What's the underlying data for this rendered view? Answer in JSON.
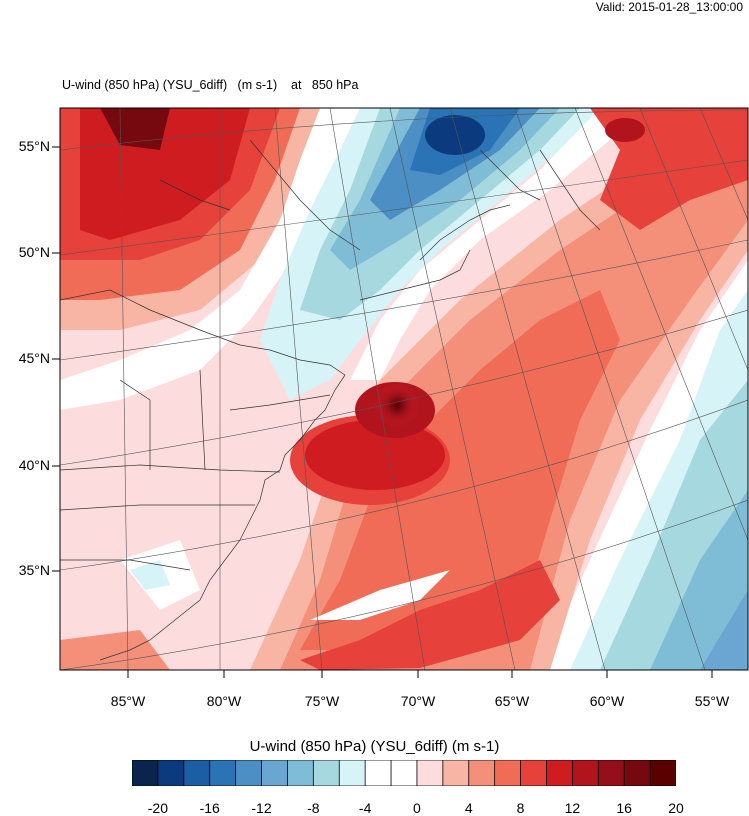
{
  "header": {
    "valid_text": "Valid: 2015-01-28_13:00:00",
    "title_field": "U-wind (850 hPa) (YSU_6diff)",
    "title_units": "(m s-1)",
    "title_at": "at",
    "title_level": "850 hPa"
  },
  "map": {
    "lat_labels": [
      "55°N",
      "50°N",
      "45°N",
      "40°N",
      "35°N"
    ],
    "lon_labels": [
      "85°W",
      "80°W",
      "75°W",
      "70°W",
      "65°W",
      "60°W",
      "55°W"
    ],
    "field": "U-wind (850 hPa)",
    "features": {
      "positive_max_center": "70.5°W 42.5°N",
      "negative_min_center": "68°W 55°N"
    }
  },
  "colorbar": {
    "title": "U-wind (850 hPa) (YSU_6diff)  (m s-1)",
    "tick_labels": [
      "-20",
      "-16",
      "-12",
      "-8",
      "-4",
      "0",
      "4",
      "8",
      "12",
      "16",
      "20"
    ],
    "colors": [
      "#08244f",
      "#0b3b7e",
      "#1b5ea3",
      "#2a73b5",
      "#4b8fc4",
      "#6aa6d1",
      "#7fbcd6",
      "#a6d8df",
      "#d6f3f8",
      "#ffffff",
      "#ffffff",
      "#fcdcdc",
      "#f9b5a4",
      "#f4907a",
      "#f06c56",
      "#e6413a",
      "#cf1c20",
      "#b2141e",
      "#93101a",
      "#76080f",
      "#5a0000"
    ]
  }
}
